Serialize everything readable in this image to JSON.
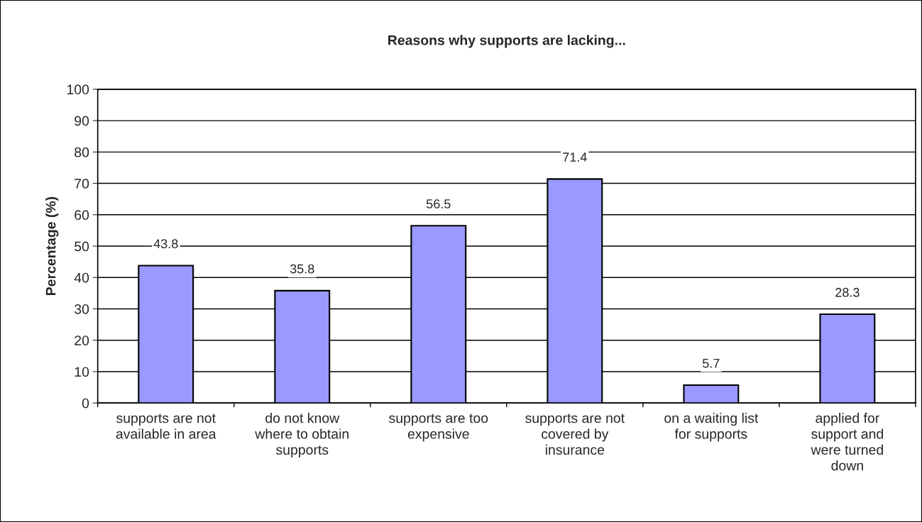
{
  "chart_data": {
    "type": "bar",
    "title": "Reasons why supports are lacking...",
    "ylabel": "Percentage (%)",
    "categories": [
      "supports are not\navailable in area",
      "do not know\nwhere to obtain\nsupports",
      "supports are too\nexpensive",
      "supports are not\ncovered by\ninsurance",
      "on a waiting list\nfor supports",
      "applied for\nsupport and\nwere turned\ndown"
    ],
    "values": [
      43.8,
      35.8,
      56.5,
      71.4,
      5.7,
      28.3
    ],
    "color": "#9999ff",
    "ylim": [
      0,
      100
    ],
    "yticks": [
      0,
      10,
      20,
      30,
      40,
      50,
      60,
      70,
      80,
      90,
      100
    ],
    "grid": "y",
    "data_labels": true
  }
}
